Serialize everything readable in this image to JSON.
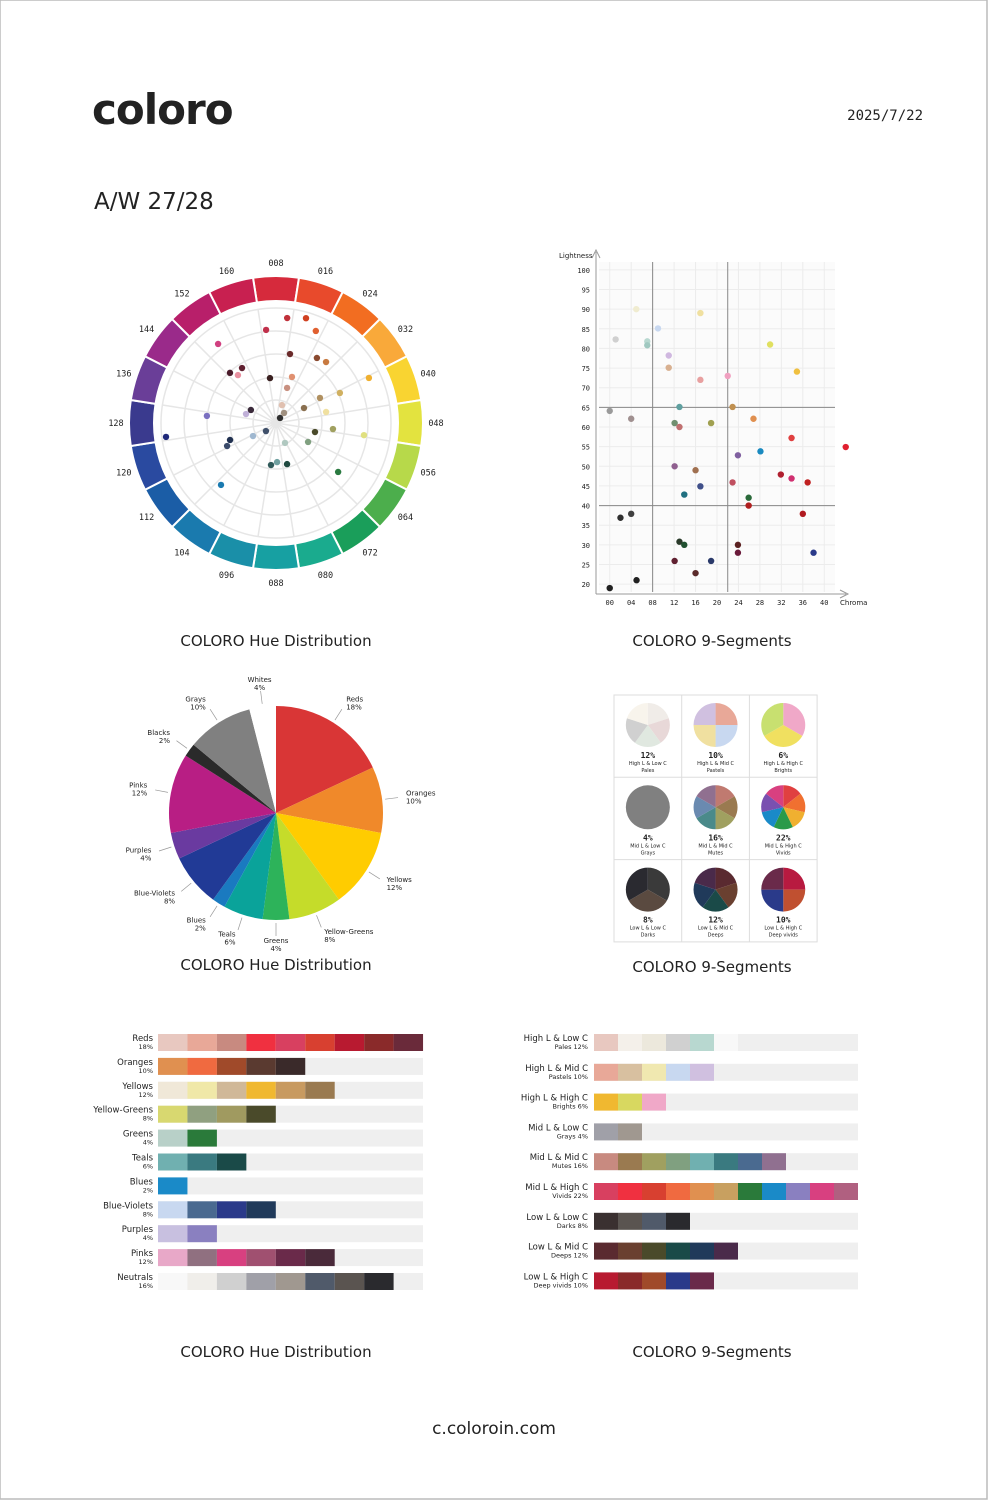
{
  "header": {
    "logo": "coloro",
    "date": "2025/7/22",
    "season": "A/W 27/28"
  },
  "footer": "c.coloroin.com",
  "chart_data": [
    {
      "type": "polar-scatter",
      "title": "COLORO Hue Distribution",
      "xlim": [
        0,
        160
      ],
      "xticks": [
        {
          "value": 8,
          "label": "008"
        },
        {
          "value": 16,
          "label": "016"
        },
        {
          "value": 24,
          "label": "024"
        },
        {
          "value": 32,
          "label": "032"
        },
        {
          "value": 40,
          "label": "040"
        },
        {
          "value": 48,
          "label": "048"
        },
        {
          "value": 56,
          "label": "056"
        },
        {
          "value": 64,
          "label": "064"
        },
        {
          "value": 72,
          "label": "072"
        },
        {
          "value": 80,
          "label": "080"
        },
        {
          "value": 88,
          "label": "088"
        },
        {
          "value": 96,
          "label": "096"
        },
        104,
        112,
        120,
        128,
        136,
        144,
        152,
        160
      ],
      "ring_colors": [
        "#d62a3c",
        "#e84a2c",
        "#f26d21",
        "#f9a93a",
        "#f9d431",
        "#e3e33f",
        "#b7d94a",
        "#4cae4c",
        "#1a9e5a",
        "#1aab8e",
        "#17a0a2",
        "#1a8fa8",
        "#1a7aae",
        "#1b5da6",
        "#2a4aa0",
        "#3a3a8e",
        "#6a3e98",
        "#9a2a8a",
        "#b81f6a",
        "#c82050"
      ],
      "rlim": [
        0,
        50
      ],
      "rticks": [
        10,
        20,
        30,
        40,
        50
      ],
      "x": [
        10.7,
        5.3,
        15.1,
        18.4,
        151.9,
        13.1,
        22.3,
        25.5,
        36.5,
        149.1,
        150.9,
        153.9,
        4.6,
        16.5,
        15.8,
        36.8,
        34.8,
        35.5,
        42.5,
        51.5,
        50.7,
        53.8,
        61.6,
        65,
        81.3,
        87.3,
        91,
        77.2,
        106.5,
        116.8,
        119,
        114.9,
        110.8,
        130.6,
        124.8,
        135.4,
        140.2,
        25.2,
        25.2,
        16.2
      ],
      "values": [
        45.9,
        40.7,
        47.4,
        43.6,
        42.6,
        30.6,
        33.4,
        34.3,
        44.9,
        29.6,
        26.6,
        28.1,
        19.7,
        21.2,
        16,
        30.7,
        22,
        13.8,
        22.3,
        38.6,
        24.9,
        17.4,
        16.2,
        34.4,
        18.5,
        17,
        18.4,
        9.5,
        36,
        23.5,
        21.3,
        11.5,
        5.6,
        30.2,
        48.2,
        13.6,
        12.3,
        2.8,
        5.6,
        8.2
      ],
      "colors": [
        "#c0303a",
        "#c0304a",
        "#d04020",
        "#e06030",
        "#d04080",
        "#6a2a2a",
        "#8a4a30",
        "#c87a40",
        "#f0b030",
        "#4a1a2a",
        "#e890a0",
        "#602030",
        "#3a2020",
        "#e09070",
        "#c89080",
        "#d0b060",
        "#b09060",
        "#8a7050",
        "#f0e0a0",
        "#e0e080",
        "#a0a060",
        "#4a4a2a",
        "#80a080",
        "#2a7a40",
        "#204a40",
        "#70a0a0",
        "#305a5a",
        "#b0c8c0",
        "#1a7ab0",
        "#3a4a6a",
        "#203050",
        "#a0b8d0",
        "#40506a",
        "#7a70c0",
        "#202a7a",
        "#c0b0d8",
        "#3a2a3a",
        "#303030",
        "#a09080",
        "#e0c0b0"
      ]
    },
    {
      "type": "scatter",
      "title": "COLORO 9-Segments",
      "x_label": "Chroma",
      "y_label": "Lightness",
      "xlim": [
        -2,
        42
      ],
      "ylim": [
        18,
        102
      ],
      "xticks": [
        {
          "value": 0,
          "label": "00"
        },
        {
          "value": 4,
          "label": "04"
        },
        {
          "value": 8,
          "label": "08"
        },
        12,
        16,
        20,
        24,
        28,
        32,
        36,
        40
      ],
      "yticks": [
        20,
        25,
        30,
        35,
        40,
        45,
        50,
        55,
        60,
        65,
        70,
        75,
        80,
        85,
        90,
        95,
        100
      ],
      "segment_lines": {
        "x": [
          8,
          22
        ],
        "y": [
          40,
          65
        ]
      },
      "x": [
        4.95,
        16.9,
        1.1,
        7,
        7,
        9,
        11,
        11,
        16.9,
        22,
        29.9,
        34.9,
        0,
        4,
        13,
        22.9,
        26.8,
        12.1,
        13,
        18.9,
        23.9,
        28.1,
        33.9,
        44,
        12.1,
        16,
        16.9,
        13.9,
        22.9,
        31.9,
        33.9,
        36.9,
        25.9,
        25.9,
        36,
        4,
        2,
        13,
        13.9,
        23.9,
        23.9,
        38,
        12.1,
        18.9,
        16,
        5,
        0
      ],
      "values": [
        90,
        89,
        82.3,
        81.8,
        80.8,
        85.1,
        78.2,
        75.1,
        72,
        73,
        81,
        74.1,
        64.1,
        62.1,
        65.1,
        65.1,
        62.1,
        61,
        60,
        61,
        52.8,
        53.8,
        57.2,
        54.9,
        50,
        49,
        44.9,
        42.8,
        45.9,
        47.9,
        46.9,
        45.9,
        42,
        40,
        37.9,
        37.9,
        36.9,
        30.8,
        30,
        30,
        28,
        28,
        25.9,
        25.9,
        22.8,
        21,
        19
      ],
      "colors": [
        "#f0ecd0",
        "#f0e0a0",
        "#d0d0d0",
        "#b8d8d0",
        "#a0c8c0",
        "#c8d8f0",
        "#d0b8e0",
        "#d8b090",
        "#e8a0a0",
        "#f0a0c0",
        "#e0e060",
        "#f0c040",
        "#9a9a9a",
        "#a09090",
        "#60a0a0",
        "#c09050",
        "#e09050",
        "#709070",
        "#c07070",
        "#a0a050",
        "#8060a0",
        "#1a8ac0",
        "#e04040",
        "#e02030",
        "#906090",
        "#a07050",
        "#40508a",
        "#207080",
        "#c05060",
        "#b02030",
        "#d03070",
        "#c02020",
        "#2a6a3a",
        "#b02020",
        "#b01a20",
        "#404040",
        "#303030",
        "#2a3a2a",
        "#205030",
        "#5a2020",
        "#6a1a3a",
        "#2a3a8a",
        "#602030",
        "#2a3a6a",
        "#5a2a2a",
        "#202020",
        "#202020"
      ]
    },
    {
      "type": "pie",
      "title": "COLORO Hue Distribution",
      "categories": [
        "Reds",
        "Oranges",
        "Yellows",
        "Yellow-Greens",
        "Greens",
        "Teals",
        "Blues",
        "Blue-Violets",
        "Purples",
        "Pinks",
        "Blacks",
        "Grays",
        "Whites"
      ],
      "values": [
        18,
        10,
        12,
        8,
        4,
        6,
        2,
        8,
        4,
        12,
        2,
        10,
        4
      ],
      "value_labels": [
        "18%",
        "10%",
        "12%",
        "8%",
        "4%",
        "6%",
        "2%",
        "8%",
        "4%",
        "12%",
        "2%",
        "10%",
        "4%"
      ],
      "colors": [
        "#d93636",
        "#f0892a",
        "#ffcc00",
        "#c5dc2a",
        "#2db35a",
        "#0aa39a",
        "#1a7ac0",
        "#213a96",
        "#6a3aa0",
        "#b81e84",
        "#2a2a2a",
        "#808080",
        "#ffffff"
      ]
    },
    {
      "type": "pie-grid",
      "title": "COLORO 9-Segments",
      "panels": [
        {
          "percent": "12%",
          "label": "High L & Low C",
          "sublabel": "Pales",
          "colors": [
            "#f0ece8",
            "#e8d8d8",
            "#e0e8e0",
            "#d0d0d0",
            "#f8f4ec"
          ]
        },
        {
          "percent": "10%",
          "label": "High L & Mid C",
          "sublabel": "Pastels",
          "colors": [
            "#e8a898",
            "#c8d8f0",
            "#f0e0a0",
            "#d0c0e0"
          ]
        },
        {
          "percent": "6%",
          "label": "High L & High C",
          "sublabel": "Brights",
          "colors": [
            "#f0a8c8",
            "#f0e060",
            "#c8e070"
          ]
        },
        {
          "percent": "4%",
          "label": "Mid L & Low C",
          "sublabel": "Grays",
          "colors": [
            "#808080"
          ]
        },
        {
          "percent": "16%",
          "label": "Mid L & Mid C",
          "sublabel": "Mutes",
          "colors": [
            "#c07a70",
            "#9a7a50",
            "#a0a060",
            "#4a8a8a",
            "#6a8ab0",
            "#907090"
          ]
        },
        {
          "percent": "22%",
          "label": "Mid L & High C",
          "sublabel": "Vivids",
          "colors": [
            "#e04040",
            "#f07030",
            "#f0b030",
            "#2a9a4a",
            "#1a8ac8",
            "#7a50b0",
            "#d84080"
          ]
        },
        {
          "percent": "8%",
          "label": "Low L & Low C",
          "sublabel": "Darks",
          "colors": [
            "#3a3a3a",
            "#5a4a40",
            "#2a2a30"
          ]
        },
        {
          "percent": "12%",
          "label": "Low L & Mid C",
          "sublabel": "Deeps",
          "colors": [
            "#5a2a30",
            "#6a4030",
            "#1a4a48",
            "#203a5a",
            "#4a2a4a"
          ]
        },
        {
          "percent": "10%",
          "label": "Low L & High C",
          "sublabel": "Deep vivids",
          "colors": [
            "#b81a40",
            "#c05030",
            "#2a3a8a",
            "#6a2a4a"
          ]
        }
      ]
    },
    {
      "type": "swatch-rows",
      "title": "COLORO Hue Distribution",
      "rows": [
        {
          "label": "Reds",
          "sublabel": "18%",
          "colors": [
            "#e8c8c0",
            "#e8a898",
            "#c88a80",
            "#f03040",
            "#d84060",
            "#d84030",
            "#b81a30",
            "#8a2a2a",
            "#6a2a3a"
          ]
        },
        {
          "label": "Oranges",
          "sublabel": "10%",
          "colors": [
            "#e09050",
            "#f06a40",
            "#a04a2a",
            "#5a3a30",
            "#3a2a2a"
          ]
        },
        {
          "label": "Yellows",
          "sublabel": "12%",
          "colors": [
            "#f0e8d8",
            "#f0e8a8",
            "#d0b898",
            "#f0b830",
            "#c89a60",
            "#9a7a50"
          ]
        },
        {
          "label": "Yellow-Greens",
          "sublabel": "8%",
          "colors": [
            "#d8d870",
            "#90a080",
            "#a09a60",
            "#4a4a2a"
          ]
        },
        {
          "label": "Greens",
          "sublabel": "4%",
          "colors": [
            "#b8d0c8",
            "#2a7a3a"
          ]
        },
        {
          "label": "Teals",
          "sublabel": "6%",
          "colors": [
            "#70b0b0",
            "#3a7a80",
            "#1a4a48"
          ]
        },
        {
          "label": "Blues",
          "sublabel": "2%",
          "colors": [
            "#1a8ac8"
          ]
        },
        {
          "label": "Blue-Violets",
          "sublabel": "8%",
          "colors": [
            "#c8d8f0",
            "#4a6a90",
            "#2a3a8a",
            "#203a5a"
          ]
        },
        {
          "label": "Purples",
          "sublabel": "4%",
          "colors": [
            "#c8c0e0",
            "#8a80c0"
          ]
        },
        {
          "label": "Pinks",
          "sublabel": "12%",
          "colors": [
            "#e8a8c8",
            "#907080",
            "#d84080",
            "#a05070",
            "#6a2a4a",
            "#4a2a3a"
          ]
        },
        {
          "label": "Neutrals",
          "sublabel": "16%",
          "colors": [
            "#f8f8f8",
            "#f0eeea",
            "#d0d0d0",
            "#a0a0a8",
            "#a09890",
            "#505a6a",
            "#5a5450",
            "#2a2a2e"
          ]
        }
      ]
    },
    {
      "type": "swatch-rows",
      "title": "COLORO 9-Segments",
      "rows": [
        {
          "label": "High L & Low C",
          "sublabel": "Pales 12%",
          "colors": [
            "#e8c8c0",
            "#f4f0ea",
            "#ece8dc",
            "#d0d0d0",
            "#b8d8d0",
            "#f8f8f8"
          ]
        },
        {
          "label": "High L & Mid C",
          "sublabel": "Pastels 10%",
          "colors": [
            "#e8a898",
            "#d8c0a0",
            "#f0e8b0",
            "#c8d8f0",
            "#d0c0e0"
          ]
        },
        {
          "label": "High L & High C",
          "sublabel": "Brights 6%",
          "colors": [
            "#f0b830",
            "#d8d860",
            "#f0a8c8"
          ]
        },
        {
          "label": "Mid L & Low C",
          "sublabel": "Grays 4%",
          "colors": [
            "#a0a0a8",
            "#a09890"
          ]
        },
        {
          "label": "Mid L & Mid C",
          "sublabel": "Mutes 16%",
          "colors": [
            "#c88a80",
            "#9a7a50",
            "#a0a060",
            "#80a080",
            "#70b0b0",
            "#3a7a80",
            "#4a6a90",
            "#907090"
          ]
        },
        {
          "label": "Mid L & High C",
          "sublabel": "Vivids 22%",
          "colors": [
            "#d84060",
            "#f03040",
            "#d84030",
            "#f06a40",
            "#e09050",
            "#c8a060",
            "#2a7a3a",
            "#1a8ac8",
            "#8a80c0",
            "#d84080",
            "#b06080"
          ]
        },
        {
          "label": "Low L & Low C",
          "sublabel": "Darks 8%",
          "colors": [
            "#3a3030",
            "#5a5450",
            "#505a6a",
            "#2a2a2e"
          ]
        },
        {
          "label": "Low L & Mid C",
          "sublabel": "Deeps 12%",
          "colors": [
            "#5a2a30",
            "#6a4030",
            "#4a4a2a",
            "#1a4a48",
            "#203a5a",
            "#4a2a4a"
          ]
        },
        {
          "label": "Low L & High C",
          "sublabel": "Deep vivids 10%",
          "colors": [
            "#b81a30",
            "#8a2a2a",
            "#a04a2a",
            "#2a3a8a",
            "#6a2a4a"
          ]
        }
      ]
    }
  ]
}
